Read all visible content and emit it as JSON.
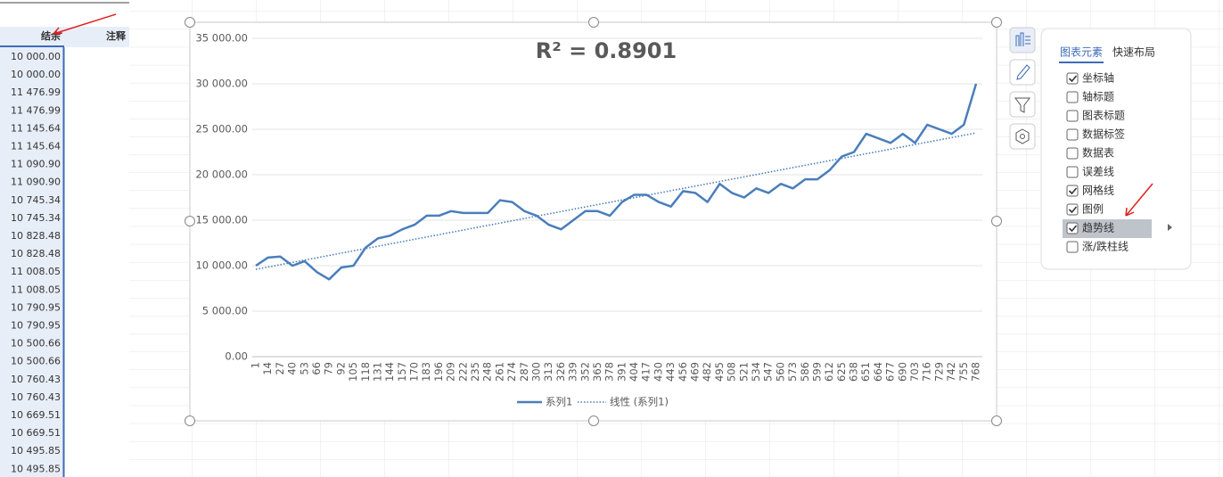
{
  "sheet": {
    "headers": [
      "结余",
      "注释"
    ],
    "balances": [
      "10 000.00",
      "10 000.00",
      "11 476.99",
      "11 476.99",
      "11 145.64",
      "11 145.64",
      "11 090.90",
      "11 090.90",
      "10 745.34",
      "10 745.34",
      "10 828.48",
      "10 828.48",
      "11 008.05",
      "11 008.05",
      "10 790.95",
      "10 790.95",
      "10 500.66",
      "10 500.66",
      "10 760.43",
      "10 760.43",
      "10 669.51",
      "10 669.51",
      "10 495.85",
      "10 495.85"
    ]
  },
  "chart": {
    "type": "line",
    "annotation": "R² = 0.8901",
    "x": [
      1,
      14,
      27,
      40,
      53,
      66,
      79,
      92,
      105,
      118,
      131,
      144,
      157,
      170,
      183,
      196,
      209,
      222,
      235,
      248,
      261,
      274,
      287,
      300,
      313,
      326,
      339,
      352,
      365,
      378,
      391,
      404,
      417,
      430,
      443,
      456,
      469,
      482,
      495,
      508,
      521,
      534,
      547,
      560,
      573,
      586,
      599,
      612,
      625,
      638,
      651,
      664,
      677,
      690,
      703,
      716,
      729,
      742,
      755,
      768
    ],
    "series": [
      {
        "name": "系列1",
        "color": "#4a7ebb",
        "values": [
          10000,
          10900,
          11000,
          10000,
          10500,
          9300,
          8500,
          9800,
          10000,
          12000,
          13000,
          13300,
          14000,
          14500,
          15500,
          15500,
          16000,
          15800,
          15800,
          15800,
          17200,
          17000,
          16000,
          15500,
          14500,
          14000,
          15000,
          16000,
          16000,
          15500,
          17000,
          17800,
          17800,
          17000,
          16500,
          18200,
          18000,
          17000,
          19000,
          18000,
          17500,
          18500,
          18000,
          19000,
          18500,
          19500,
          19500,
          20500,
          22000,
          22500,
          24500,
          24000,
          23500,
          24500,
          23500,
          25500,
          25000,
          24500,
          25500,
          30000
        ]
      }
    ],
    "trendline": {
      "name": "线性 (系列1)",
      "color": "#4a7ebb",
      "values": [
        9600,
        24600
      ]
    },
    "ylim": [
      0,
      35000
    ],
    "yticks": [
      {
        "value": 0,
        "label": "0.00"
      },
      {
        "value": 5000,
        "label": "5 000.00"
      },
      {
        "value": 10000,
        "label": "10 000.00"
      },
      {
        "value": 15000,
        "label": "15 000.00"
      },
      {
        "value": 20000,
        "label": "20 000.00"
      },
      {
        "value": 25000,
        "label": "25 000.00"
      },
      {
        "value": 30000,
        "label": "30 000.00"
      },
      {
        "value": 35000,
        "label": "35 000.00"
      }
    ],
    "grid": true
  },
  "panel": {
    "tabs": [
      "图表元素",
      "快速布局"
    ],
    "items": [
      {
        "label": "坐标轴",
        "checked": true
      },
      {
        "label": "轴标题",
        "checked": false
      },
      {
        "label": "图表标题",
        "checked": false
      },
      {
        "label": "数据标签",
        "checked": false
      },
      {
        "label": "数据表",
        "checked": false
      },
      {
        "label": "误差线",
        "checked": false
      },
      {
        "label": "网格线",
        "checked": true
      },
      {
        "label": "图例",
        "checked": true
      },
      {
        "label": "趋势线",
        "checked": true
      },
      {
        "label": "涨/跌柱线",
        "checked": false
      }
    ]
  }
}
